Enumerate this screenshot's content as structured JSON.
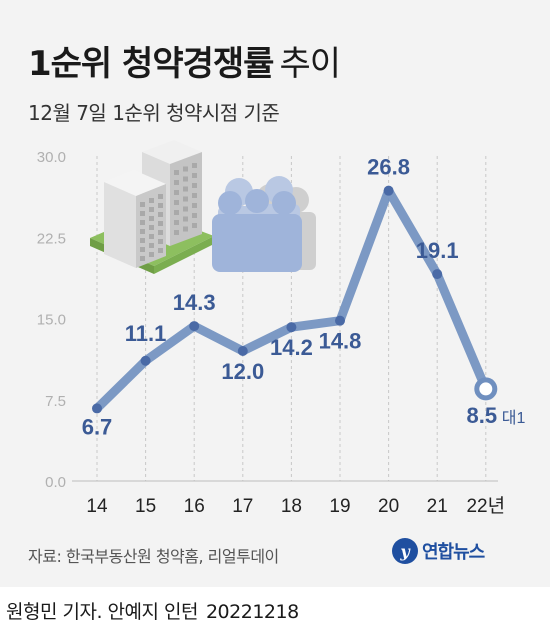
{
  "header": {
    "title_main": "1순위 청약경쟁률",
    "title_sub": "추이",
    "subtitle": "12월 7일 1순위 청약시점 기준"
  },
  "footer": {
    "source": "자료: 한국부동산원 청약홈, 리얼투데이",
    "logo_text": "연합뉴스",
    "credit": "원형민 기자. 안예지 인턴",
    "credit_date": "20221218"
  },
  "colors": {
    "line": "#6f8fbf",
    "point": "#4a6aa6",
    "label": "#3b5a95",
    "axis": "#bdbdbd",
    "building_accent": "#8dbf5f",
    "people": "#9fb4da"
  },
  "icons": [
    "apartment-building-icon",
    "people-group-icon"
  ],
  "chart_data": {
    "type": "line",
    "categories": [
      "14",
      "15",
      "16",
      "17",
      "18",
      "19",
      "20",
      "21",
      "22년"
    ],
    "series": [
      {
        "values": [
          6.7,
          11.1,
          14.3,
          12.0,
          14.2,
          14.8,
          26.8,
          19.1,
          8.5
        ]
      }
    ],
    "data_labels": [
      "6.7",
      "11.1",
      "14.3",
      "12.0",
      "14.2",
      "14.8",
      "26.8",
      "19.1",
      "8.5"
    ],
    "last_label_unit": "대1",
    "yticks": [
      "30.0",
      "22.5",
      "15.0",
      "7.5",
      "0.0"
    ],
    "ytick_values": [
      30,
      22.5,
      15,
      7.5,
      0
    ],
    "ylim": [
      0,
      30
    ],
    "grid": "vertical dashed",
    "title": "1순위 청약경쟁률 추이",
    "xlabel": "",
    "ylabel": ""
  }
}
